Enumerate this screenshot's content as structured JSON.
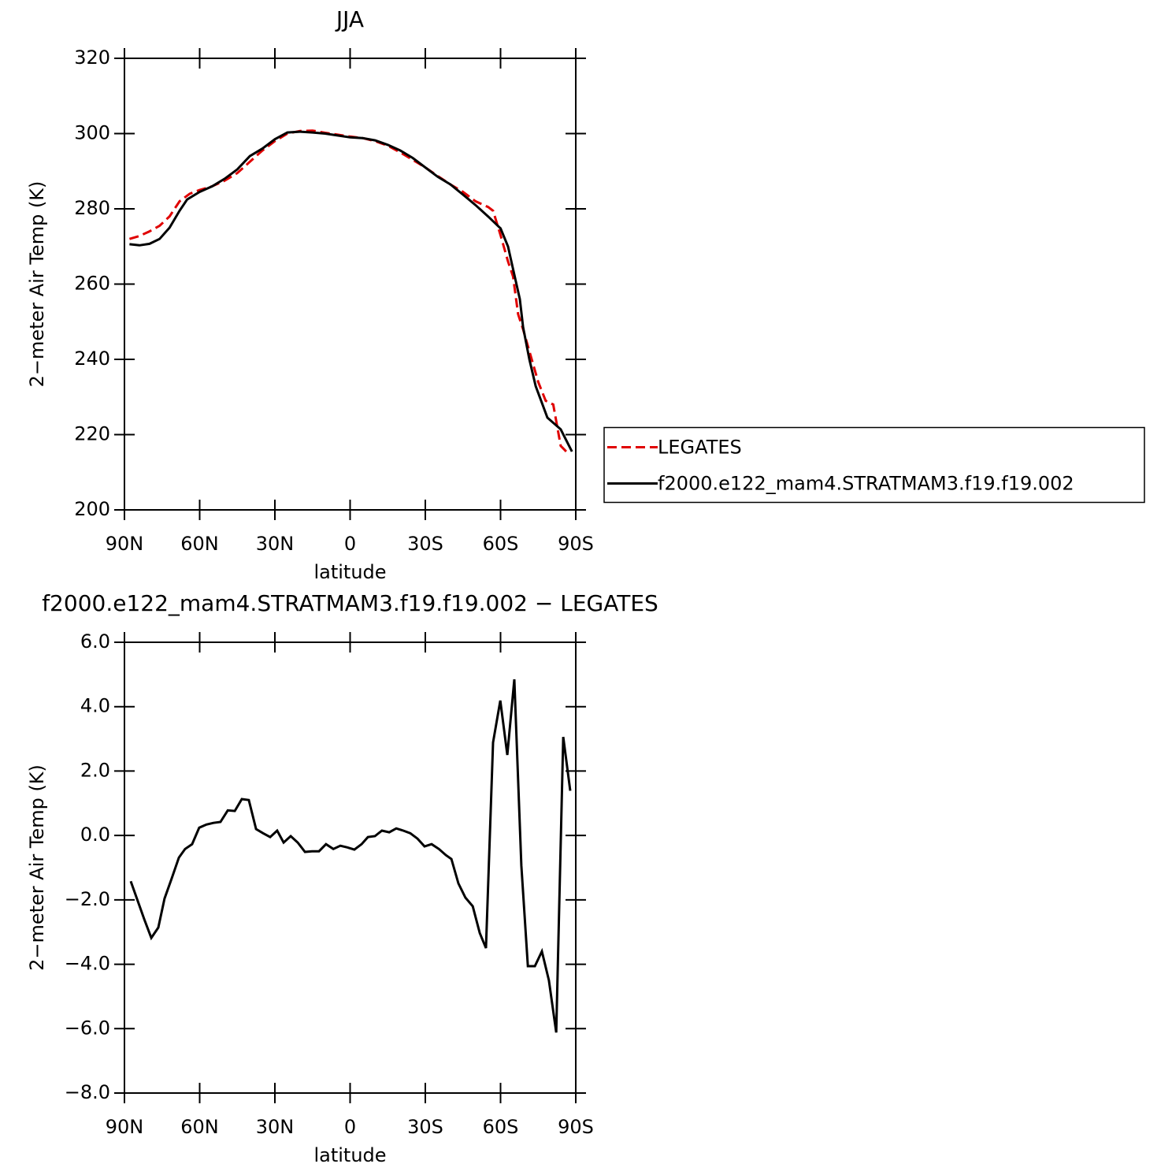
{
  "chart_data": [
    {
      "type": "line",
      "title": "JJA",
      "xlabel": "latitude",
      "ylabel": "2−meter Air Temp (K)",
      "xlim": [
        90,
        -90
      ],
      "xticks": [
        {
          "value": 90,
          "label": "90N"
        },
        {
          "value": 60,
          "label": "60N"
        },
        {
          "value": 30,
          "label": "30N"
        },
        0,
        {
          "value": -30,
          "label": "30S"
        },
        {
          "value": -60,
          "label": "60S"
        },
        {
          "value": -90,
          "label": "90S"
        }
      ],
      "ylim": [
        200,
        320
      ],
      "yticks": [
        200,
        220,
        240,
        260,
        280,
        300,
        320
      ],
      "legend": "right",
      "series": [
        {
          "name": "LEGATES",
          "color": "#e00000",
          "dash": true,
          "x": [
            88,
            84,
            80,
            76,
            72,
            68,
            64,
            60,
            55,
            50,
            45,
            40,
            35,
            30,
            25,
            20,
            15,
            10,
            5,
            0,
            -5,
            -10,
            -15,
            -20,
            -25,
            -30,
            -35,
            -40,
            -45,
            -50,
            -55,
            -57,
            -60,
            -63,
            -65,
            -67,
            -69,
            -72,
            -75,
            -78,
            -81,
            -84,
            -87
          ],
          "values": [
            272,
            272.8,
            274,
            275.5,
            278,
            282,
            284,
            285,
            286,
            287.5,
            289.5,
            292.5,
            295.5,
            298,
            300,
            300.7,
            300.8,
            300.2,
            299.7,
            299.2,
            298.8,
            298,
            296.8,
            295,
            293,
            291,
            288.7,
            286.5,
            284.5,
            282,
            280.5,
            279.5,
            273,
            266,
            262,
            252,
            248,
            241,
            234,
            229,
            228,
            217,
            215
          ]
        },
        {
          "name": "f2000.e122_mam4.STRATMAM3.f19.f19.002",
          "color": "#000000",
          "dash": false,
          "x": [
            88,
            84,
            80,
            76,
            72,
            68,
            65,
            60,
            55,
            50,
            45,
            40,
            35,
            30,
            25,
            20,
            15,
            10,
            5,
            0,
            -5,
            -10,
            -15,
            -20,
            -25,
            -30,
            -35,
            -40,
            -45,
            -50,
            -55,
            -60,
            -63,
            -65,
            -67.7,
            -69,
            -71.5,
            -74,
            -78.7,
            -84,
            -87.2,
            -88.5
          ],
          "values": [
            270.6,
            270.3,
            270.7,
            272,
            275,
            279.5,
            282.5,
            284.5,
            286,
            288,
            290.5,
            294,
            296,
            298.5,
            300.3,
            300.5,
            300.3,
            300,
            299.5,
            299,
            298.8,
            298.2,
            297,
            295.5,
            293.5,
            291,
            288.5,
            286.5,
            283.8,
            281,
            278,
            274.8,
            270,
            264,
            256,
            248.6,
            240,
            232.9,
            224.5,
            221.4,
            217.2,
            215.5
          ]
        }
      ]
    },
    {
      "type": "line",
      "title": "f2000.e122_mam4.STRATMAM3.f19.f19.002  −  LEGATES",
      "xlabel": "latitude",
      "ylabel": "2−meter Air Temp (K)",
      "xlim": [
        90,
        -90
      ],
      "xticks": [
        {
          "value": 90,
          "label": "90N"
        },
        {
          "value": 60,
          "label": "60N"
        },
        {
          "value": 30,
          "label": "30N"
        },
        0,
        {
          "value": -30,
          "label": "30S"
        },
        {
          "value": -60,
          "label": "60S"
        },
        {
          "value": -90,
          "label": "90S"
        }
      ],
      "ylim": [
        -8,
        6
      ],
      "yticks": [
        {
          "value": -8,
          "label": "−8.0"
        },
        {
          "value": -6,
          "label": "−6.0"
        },
        {
          "value": -4,
          "label": "−4.0"
        },
        {
          "value": -2,
          "label": "−2.0"
        },
        {
          "value": 0,
          "label": "0.0"
        },
        {
          "value": 2,
          "label": "2.0"
        },
        {
          "value": 4,
          "label": "4.0"
        },
        {
          "value": 6,
          "label": "6.0"
        }
      ],
      "series": [
        {
          "color": "#000000",
          "dash": false,
          "x": [
            87.5,
            82.1,
            79.3,
            76.5,
            74,
            71.2,
            68.3,
            65.8,
            63,
            60.2,
            57.3,
            54.5,
            51.7,
            48.8,
            46,
            43.2,
            40.4,
            37.5,
            34.7,
            31.9,
            29.1,
            26.5,
            23.7,
            20.9,
            18,
            15.2,
            12.4,
            9.6,
            6.7,
            3.9,
            1.1,
            -1.7,
            -4.6,
            -7.1,
            -9.9,
            -12.7,
            -15.6,
            -18.4,
            -21.2,
            -24,
            -26.9,
            -29.7,
            -32.5,
            -35.4,
            -38.2,
            -40.4,
            -43.2,
            -46,
            -48.9,
            -51.7,
            -54.2,
            -57,
            -59.9,
            -62.7,
            -65.5,
            -68.3,
            -70.9,
            -73.7,
            -76.5,
            -79.3,
            -82.2,
            -85,
            -87.8
          ],
          "values": [
            -1.42,
            -2.6,
            -3.18,
            -2.86,
            -1.96,
            -1.35,
            -0.69,
            -0.42,
            -0.27,
            0.24,
            0.34,
            0.39,
            0.42,
            0.78,
            0.76,
            1.13,
            1.1,
            0.2,
            0.07,
            -0.05,
            0.15,
            -0.22,
            -0.02,
            -0.22,
            -0.51,
            -0.49,
            -0.49,
            -0.27,
            -0.42,
            -0.32,
            -0.37,
            -0.44,
            -0.27,
            -0.05,
            -0.02,
            0.15,
            0.1,
            0.22,
            0.15,
            0.07,
            -0.1,
            -0.34,
            -0.27,
            -0.42,
            -0.61,
            -0.73,
            -1.49,
            -1.93,
            -2.2,
            -3.03,
            -3.5,
            2.89,
            4.19,
            2.5,
            4.85,
            -0.93,
            -4.06,
            -4.06,
            -3.6,
            -4.5,
            -6.12,
            3.06,
            1.39
          ]
        }
      ]
    }
  ]
}
